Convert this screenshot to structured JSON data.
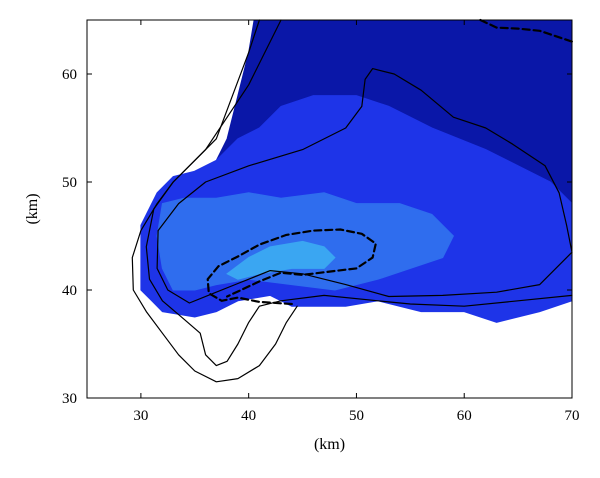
{
  "chart_data": {
    "type": "heatmap",
    "title": "",
    "xlabel": "(km)",
    "ylabel": "(km)",
    "xlim": [
      25,
      70
    ],
    "ylim": [
      30,
      65
    ],
    "xticks": [
      30,
      40,
      50,
      60,
      70
    ],
    "yticks": [
      30,
      40,
      50,
      60
    ],
    "grid": false,
    "colors": {
      "deep": "#0a17a8",
      "mid": "#1e34e8",
      "light": "#2f6dee",
      "lightest": "#3aa6f2",
      "edge": "#1021c6"
    },
    "regions": [
      {
        "name": "deep",
        "polygon": [
          [
            40.5,
            65
          ],
          [
            70,
            65
          ],
          [
            70,
            48
          ],
          [
            68,
            50
          ],
          [
            62,
            53
          ],
          [
            57,
            55
          ],
          [
            53,
            57
          ],
          [
            50,
            58
          ],
          [
            46,
            58
          ],
          [
            43,
            57
          ],
          [
            41,
            55
          ],
          [
            39,
            54
          ],
          [
            37,
            52
          ],
          [
            35,
            51
          ],
          [
            34,
            49
          ],
          [
            36,
            50
          ],
          [
            38,
            54
          ],
          [
            39,
            58
          ],
          [
            40,
            62
          ]
        ]
      },
      {
        "name": "mid",
        "polygon": [
          [
            70,
            48
          ],
          [
            70,
            39
          ],
          [
            67,
            38
          ],
          [
            63,
            37
          ],
          [
            60,
            38
          ],
          [
            56,
            38
          ],
          [
            52,
            39
          ],
          [
            49,
            38.5
          ],
          [
            44,
            38.5
          ],
          [
            42,
            39.5
          ],
          [
            39,
            39
          ],
          [
            37,
            38
          ],
          [
            35,
            37.5
          ],
          [
            32,
            38
          ],
          [
            31,
            39
          ],
          [
            30,
            40
          ],
          [
            30,
            43
          ],
          [
            30,
            46
          ],
          [
            31.5,
            49
          ],
          [
            33,
            50.5
          ],
          [
            35,
            51
          ],
          [
            37,
            52
          ],
          [
            39,
            54
          ],
          [
            41,
            55
          ],
          [
            43,
            57
          ],
          [
            46,
            58
          ],
          [
            50,
            58
          ],
          [
            53,
            57
          ],
          [
            57,
            55
          ],
          [
            62,
            53
          ],
          [
            68,
            50
          ]
        ]
      },
      {
        "name": "light",
        "polygon": [
          [
            32,
            48
          ],
          [
            34,
            48.5
          ],
          [
            37,
            48.5
          ],
          [
            40,
            49
          ],
          [
            43,
            48.5
          ],
          [
            47,
            49
          ],
          [
            50,
            48
          ],
          [
            54,
            48
          ],
          [
            57,
            47
          ],
          [
            59,
            45
          ],
          [
            58,
            43
          ],
          [
            55,
            42
          ],
          [
            52,
            41
          ],
          [
            48,
            40
          ],
          [
            44,
            40.5
          ],
          [
            40,
            41
          ],
          [
            37,
            40.5
          ],
          [
            35,
            40
          ],
          [
            33,
            40
          ],
          [
            32,
            42
          ],
          [
            31.5,
            45
          ]
        ]
      },
      {
        "name": "lightest",
        "polygon": [
          [
            38,
            41.5
          ],
          [
            40,
            43
          ],
          [
            42,
            44
          ],
          [
            45,
            44.5
          ],
          [
            47,
            44
          ],
          [
            48,
            43
          ],
          [
            47,
            42
          ],
          [
            44,
            42
          ],
          [
            41,
            41.5
          ],
          [
            39,
            41
          ]
        ]
      }
    ],
    "contours": [
      {
        "style": "solid",
        "points": [
          [
            41,
            65
          ],
          [
            40,
            62
          ],
          [
            38.5,
            58
          ],
          [
            37,
            54
          ],
          [
            35,
            52
          ],
          [
            33,
            50
          ],
          [
            31.5,
            48
          ],
          [
            30,
            45.5
          ],
          [
            29.2,
            43
          ],
          [
            29.3,
            40
          ],
          [
            30.5,
            38
          ],
          [
            32,
            36
          ],
          [
            33.5,
            34
          ],
          [
            35,
            32.5
          ],
          [
            37,
            31.5
          ],
          [
            39,
            31.8
          ],
          [
            41,
            33
          ],
          [
            42.5,
            35
          ],
          [
            43.5,
            37
          ],
          [
            44.5,
            38.5
          ]
        ]
      },
      {
        "style": "solid",
        "points": [
          [
            43,
            65
          ],
          [
            40,
            59
          ],
          [
            36,
            53
          ],
          [
            33,
            50
          ],
          [
            31.2,
            47.5
          ],
          [
            30.5,
            44
          ],
          [
            30.8,
            41
          ],
          [
            32,
            39
          ],
          [
            34,
            37.3
          ],
          [
            35.5,
            36
          ],
          [
            36,
            34
          ],
          [
            37,
            33
          ],
          [
            38,
            33.4
          ],
          [
            39,
            35
          ],
          [
            40,
            37
          ],
          [
            41,
            38.5
          ],
          [
            43,
            39
          ],
          [
            47,
            39.5
          ],
          [
            52,
            39
          ],
          [
            55,
            38.7
          ],
          [
            60,
            38.5
          ],
          [
            65,
            39
          ],
          [
            70,
            39.5
          ]
        ]
      },
      {
        "style": "solid",
        "points": [
          [
            70,
            43.5
          ],
          [
            67,
            40.5
          ],
          [
            63,
            39.8
          ],
          [
            58,
            39.5
          ],
          [
            53,
            39.4
          ],
          [
            49,
            40.5
          ],
          [
            45,
            41.5
          ],
          [
            42,
            41.8
          ],
          [
            39,
            40.6
          ],
          [
            36.5,
            39.6
          ],
          [
            34.5,
            38.8
          ],
          [
            32.5,
            40
          ],
          [
            31.5,
            42
          ],
          [
            31.6,
            45.5
          ],
          [
            33.5,
            48
          ],
          [
            36,
            50
          ],
          [
            40,
            51.5
          ],
          [
            45,
            53
          ],
          [
            49,
            55
          ],
          [
            50.5,
            57
          ],
          [
            50.8,
            59.5
          ],
          [
            51.5,
            60.5
          ],
          [
            53.5,
            60
          ],
          [
            56,
            58.5
          ],
          [
            59,
            56
          ],
          [
            62,
            55
          ],
          [
            64.5,
            53.5
          ],
          [
            67.5,
            51.5
          ],
          [
            68.8,
            49
          ],
          [
            69.5,
            46
          ],
          [
            70,
            43.5
          ]
        ]
      },
      {
        "style": "dashed",
        "points": [
          [
            44,
            38.7
          ],
          [
            41,
            38.9
          ],
          [
            39,
            39.3
          ],
          [
            37.5,
            39
          ],
          [
            36.3,
            39.7
          ],
          [
            36.2,
            41
          ],
          [
            37.2,
            42.2
          ],
          [
            39,
            43.1
          ],
          [
            41,
            44.2
          ],
          [
            43.5,
            45.1
          ],
          [
            46,
            45.5
          ],
          [
            48.5,
            45.6
          ],
          [
            50.5,
            45.2
          ],
          [
            51.8,
            44.3
          ],
          [
            51.5,
            43
          ],
          [
            50,
            42
          ],
          [
            47.5,
            41.7
          ],
          [
            45,
            41.4
          ],
          [
            43,
            41.6
          ],
          [
            41,
            40.8
          ],
          [
            39.3,
            40
          ],
          [
            38,
            39.4
          ]
        ]
      },
      {
        "style": "dashed",
        "points": [
          [
            61.5,
            65
          ],
          [
            63,
            64.3
          ],
          [
            65,
            64.2
          ],
          [
            67,
            64
          ],
          [
            68.5,
            63.5
          ],
          [
            70,
            63
          ]
        ]
      }
    ]
  }
}
